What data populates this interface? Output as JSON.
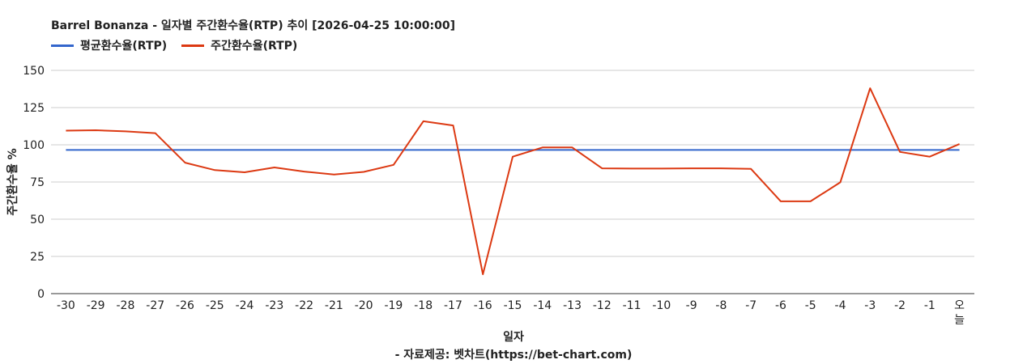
{
  "chart_data": {
    "type": "line",
    "title": "Barrel Bonanza - 일자별 주간환수율(RTP) 추이 [2026-04-25 10:00:00]",
    "xlabel": "일자",
    "ylabel": "주간환수율 %",
    "source": "- 자료제공: 벳차트(https://bet-chart.com)",
    "categories": [
      "-30",
      "-29",
      "-28",
      "-27",
      "-26",
      "-25",
      "-24",
      "-23",
      "-22",
      "-21",
      "-20",
      "-19",
      "-18",
      "-17",
      "-16",
      "-15",
      "-14",
      "-13",
      "-12",
      "-11",
      "-10",
      "-9",
      "-8",
      "-7",
      "-6",
      "-5",
      "-4",
      "-3",
      "-2",
      "-1",
      "오늘"
    ],
    "series": [
      {
        "name": "평균환수율(RTP)",
        "color": "#3366cc",
        "values": [
          96.5,
          96.5,
          96.5,
          96.5,
          96.5,
          96.5,
          96.5,
          96.5,
          96.5,
          96.5,
          96.5,
          96.5,
          96.5,
          96.5,
          96.5,
          96.5,
          96.5,
          96.5,
          96.5,
          96.5,
          96.5,
          96.5,
          96.5,
          96.5,
          96.5,
          96.5,
          96.5,
          96.5,
          96.5,
          96.5,
          96.5
        ]
      },
      {
        "name": "주간환수율(RTP)",
        "color": "#dc3912",
        "values": [
          109.5,
          109.8,
          109,
          107.8,
          88,
          83,
          81.5,
          84.8,
          82,
          80,
          81.8,
          86.5,
          115.8,
          113,
          13,
          92,
          98.2,
          98.2,
          84.2,
          84,
          84,
          84.2,
          84.2,
          83.8,
          62,
          62,
          74.8,
          138,
          95.2,
          92,
          100.5
        ]
      }
    ],
    "yticks": [
      0,
      25,
      50,
      75,
      100,
      125,
      150
    ],
    "ylim": [
      0,
      150
    ],
    "grid": true,
    "legend_position": "top-left"
  }
}
